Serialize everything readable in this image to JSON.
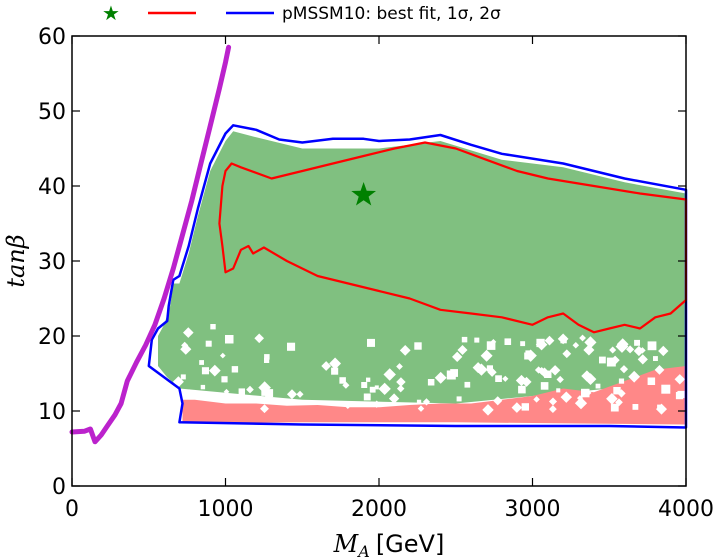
{
  "chart_data": {
    "type": "scatter",
    "title": "",
    "xlabel": "M_A [GeV]",
    "ylabel": "tanβ",
    "xlabel_main": "M",
    "xlabel_sub": "A",
    "xlabel_unit": "[GeV]",
    "xlim": [
      0,
      4000
    ],
    "ylim": [
      0,
      60
    ],
    "xticks": [
      0,
      1000,
      2000,
      3000,
      4000
    ],
    "yticks": [
      0,
      10,
      20,
      30,
      40,
      50,
      60
    ],
    "grid": false,
    "legend_placement": "top",
    "legend": {
      "label": "pMSSM10: best fit, 1σ, 2σ",
      "entries": [
        {
          "marker": "star",
          "color": "#008000"
        },
        {
          "marker": "line",
          "color": "#ff0000"
        },
        {
          "marker": "line",
          "color": "#0000ff"
        }
      ]
    },
    "best_fit": {
      "x": 1900,
      "y": 38.8,
      "color": "#008000"
    },
    "series": [
      {
        "role": "limit_curve",
        "color": "#bb22cc",
        "points": [
          [
            0,
            7.2
          ],
          [
            80,
            7.3
          ],
          [
            120,
            7.6
          ],
          [
            150,
            5.9
          ],
          [
            190,
            6.8
          ],
          [
            230,
            8
          ],
          [
            280,
            9.5
          ],
          [
            320,
            11
          ],
          [
            360,
            14
          ],
          [
            420,
            16.5
          ],
          [
            480,
            18.8
          ],
          [
            540,
            21.5
          ],
          [
            600,
            25
          ],
          [
            660,
            29
          ],
          [
            720,
            33.5
          ],
          [
            780,
            38
          ],
          [
            840,
            43
          ],
          [
            900,
            48
          ],
          [
            960,
            53
          ],
          [
            1000,
            56.5
          ],
          [
            1020,
            58.5
          ]
        ]
      },
      {
        "role": "contour_2sigma",
        "color": "#0000ff",
        "points": [
          [
            700,
            8.5
          ],
          [
            1500,
            8.2
          ],
          [
            2500,
            8
          ],
          [
            3500,
            8
          ],
          [
            4000,
            7.8
          ],
          [
            4000,
            39.5
          ],
          [
            3600,
            41
          ],
          [
            3200,
            43
          ],
          [
            2800,
            44.3
          ],
          [
            2600,
            45.5
          ],
          [
            2400,
            46.8
          ],
          [
            2200,
            46.2
          ],
          [
            2000,
            46
          ],
          [
            1900,
            46.3
          ],
          [
            1700,
            46.3
          ],
          [
            1500,
            45.8
          ],
          [
            1350,
            46.2
          ],
          [
            1200,
            47.5
          ],
          [
            1050,
            48.1
          ],
          [
            1000,
            47
          ],
          [
            900,
            43
          ],
          [
            820,
            37
          ],
          [
            760,
            32
          ],
          [
            700,
            28
          ],
          [
            660,
            27.5
          ],
          [
            630,
            24
          ],
          [
            620,
            22
          ],
          [
            560,
            21
          ],
          [
            520,
            19.5
          ],
          [
            500,
            16
          ],
          [
            600,
            14.5
          ],
          [
            700,
            13
          ],
          [
            720,
            11
          ],
          [
            700,
            8.5
          ]
        ]
      },
      {
        "role": "contour_1sigma",
        "color": "#ff0000",
        "points": [
          [
            1000,
            42
          ],
          [
            1040,
            43
          ],
          [
            1100,
            42.5
          ],
          [
            1300,
            41
          ],
          [
            1500,
            42
          ],
          [
            1700,
            43
          ],
          [
            1900,
            44
          ],
          [
            2100,
            45
          ],
          [
            2300,
            45.8
          ],
          [
            2500,
            45
          ],
          [
            2700,
            43.5
          ],
          [
            2900,
            42
          ],
          [
            3100,
            41
          ],
          [
            3400,
            40
          ],
          [
            3700,
            39
          ],
          [
            4000,
            38.2
          ],
          [
            4000,
            24.8
          ],
          [
            3900,
            23
          ],
          [
            3800,
            22.5
          ],
          [
            3700,
            21
          ],
          [
            3600,
            21.5
          ],
          [
            3500,
            21
          ],
          [
            3400,
            20.5
          ],
          [
            3300,
            21.5
          ],
          [
            3200,
            23
          ],
          [
            3100,
            22.5
          ],
          [
            3000,
            21.5
          ],
          [
            2800,
            22.5
          ],
          [
            2600,
            23
          ],
          [
            2400,
            23.5
          ],
          [
            2200,
            25
          ],
          [
            2000,
            26
          ],
          [
            1800,
            27
          ],
          [
            1600,
            28
          ],
          [
            1400,
            30
          ],
          [
            1250,
            31.8
          ],
          [
            1180,
            31
          ],
          [
            1150,
            32
          ],
          [
            1100,
            31.5
          ],
          [
            1050,
            29
          ],
          [
            1000,
            28.5
          ],
          [
            980,
            32
          ],
          [
            960,
            35
          ],
          [
            980,
            40
          ],
          [
            1000,
            42
          ]
        ]
      },
      {
        "role": "region_1_2sigma_fill",
        "color": "#80c080",
        "points": [
          [
            700,
            13
          ],
          [
            1500,
            11.5
          ],
          [
            2500,
            11
          ],
          [
            3500,
            13
          ],
          [
            4000,
            14
          ],
          [
            4000,
            39
          ],
          [
            3600,
            40.5
          ],
          [
            3200,
            42.5
          ],
          [
            2800,
            43.5
          ],
          [
            2400,
            46
          ],
          [
            2000,
            45
          ],
          [
            1500,
            45
          ],
          [
            1200,
            46.5
          ],
          [
            1050,
            47.3
          ],
          [
            1000,
            46
          ],
          [
            900,
            42
          ],
          [
            820,
            36
          ],
          [
            760,
            31
          ],
          [
            700,
            27
          ],
          [
            660,
            27
          ],
          [
            640,
            24
          ],
          [
            600,
            21.5
          ],
          [
            560,
            20
          ],
          [
            560,
            16
          ],
          [
            620,
            14.5
          ],
          [
            700,
            13
          ]
        ]
      },
      {
        "role": "region_pink_fill",
        "color": "#ff8888",
        "points": [
          [
            720,
            8.4
          ],
          [
            1500,
            8.5
          ],
          [
            2500,
            8.5
          ],
          [
            3500,
            8.3
          ],
          [
            4000,
            8.2
          ],
          [
            4000,
            16
          ],
          [
            3800,
            15.5
          ],
          [
            3600,
            14
          ],
          [
            3400,
            12.5
          ],
          [
            3200,
            13
          ],
          [
            3000,
            12
          ],
          [
            2800,
            11.5
          ],
          [
            2600,
            11
          ],
          [
            2400,
            11
          ],
          [
            2200,
            10.8
          ],
          [
            2000,
            10.5
          ],
          [
            1800,
            10.5
          ],
          [
            1600,
            10.8
          ],
          [
            1400,
            10.7
          ],
          [
            1200,
            11
          ],
          [
            1000,
            11
          ],
          [
            800,
            11.5
          ],
          [
            720,
            11.5
          ]
        ]
      }
    ]
  }
}
